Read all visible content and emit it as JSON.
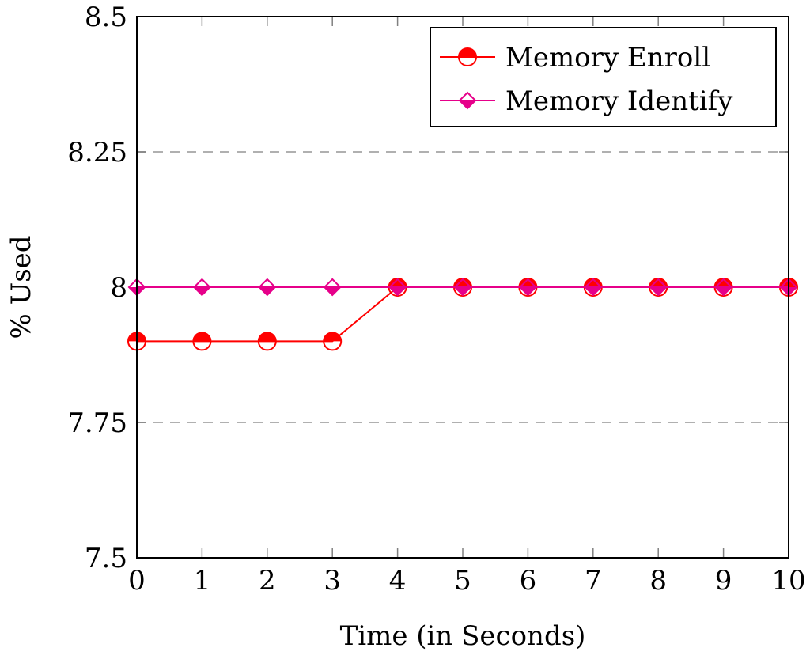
{
  "chart_data": {
    "type": "line",
    "title": "",
    "xlabel": "Time (in Seconds)",
    "ylabel": "% Used",
    "x": [
      0,
      1,
      2,
      3,
      4,
      5,
      6,
      7,
      8,
      9,
      10
    ],
    "xlim": [
      0,
      10
    ],
    "ylim": [
      7.5,
      8.5
    ],
    "xticks": [
      "0",
      "1",
      "2",
      "3",
      "4",
      "5",
      "6",
      "7",
      "8",
      "9",
      "10"
    ],
    "yticks": [
      {
        "value": 7.5,
        "label": "7.5"
      },
      {
        "value": 7.75,
        "label": "7.75"
      },
      {
        "value": 8.0,
        "label": "8"
      },
      {
        "value": 8.25,
        "label": "8.25"
      },
      {
        "value": 8.5,
        "label": "8.5"
      }
    ],
    "grid": "horizontal dashed",
    "legend_position": "top-right",
    "series": [
      {
        "name": "Memory Enroll",
        "color": "#ff0000",
        "marker": "half-filled circle",
        "values": [
          7.9,
          7.9,
          7.9,
          7.9,
          8.0,
          8.0,
          8.0,
          8.0,
          8.0,
          8.0,
          8.0
        ]
      },
      {
        "name": "Memory Identify",
        "color": "#e6008a",
        "marker": "half-filled diamond",
        "values": [
          8.0,
          8.0,
          8.0,
          8.0,
          8.0,
          8.0,
          8.0,
          8.0,
          8.0,
          8.0,
          8.0
        ]
      }
    ]
  }
}
